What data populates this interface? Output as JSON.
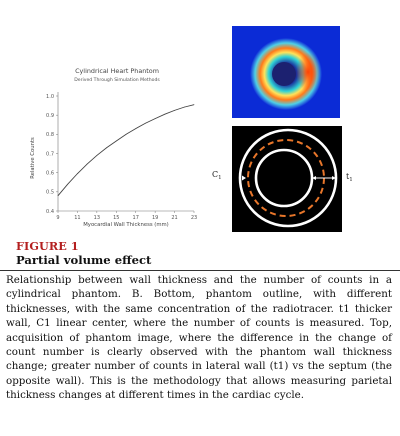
{
  "figure": {
    "label": "FIGURE 1",
    "title": "Partial volume effect",
    "caption": "Relationship between wall thickness and the number of counts in a cylindrical phantom. B. Bottom, phantom outline, with different thicknesses, with the same concentration of the radiotracer. t1 thicker wall, C1 linear center, where the number of counts is measured. Top, acquisition of phantom image, where the difference in the change of count number is clearly observed with the phantom wall thickness change; greater number of counts in lateral wall (t1) vs the septum (the opposite wall). This is the methodology that allows measuring parietal thickness changes at different times in the cardiac cycle."
  },
  "chart_data": {
    "type": "line",
    "title": "Cylindrical Heart Phantom",
    "subtitle": "Derived Through Simulation Methods",
    "xlabel": "Myocardial Wall Thickness (mm)",
    "ylabel": "Relative Counts",
    "xlim": [
      9,
      23
    ],
    "ylim": [
      0.4,
      1.0
    ],
    "x_ticks": [
      "9",
      "11",
      "13",
      "15",
      "17",
      "19",
      "21",
      "23"
    ],
    "y_ticks": [
      "0.4",
      "0.5",
      "0.6",
      "0.7",
      "0.8",
      "0.9",
      "1.0"
    ],
    "series": [
      {
        "x": [
          9,
          10,
          11,
          12,
          13,
          14,
          15,
          16,
          17,
          18,
          19,
          20,
          21,
          22,
          23
        ],
        "values": [
          0.48,
          0.54,
          0.595,
          0.645,
          0.69,
          0.73,
          0.765,
          0.8,
          0.83,
          0.858,
          0.882,
          0.905,
          0.925,
          0.942,
          0.955
        ]
      }
    ],
    "grid": false,
    "legend": "none"
  },
  "phantom_outline": {
    "label_c1": "C",
    "label_c1_sub": "1",
    "label_t1": "t",
    "label_t1_sub": "1"
  }
}
